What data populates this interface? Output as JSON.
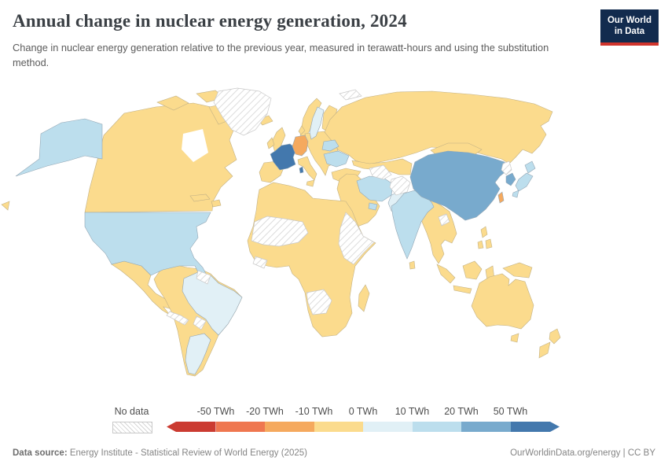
{
  "header": {
    "title": "Annual change in nuclear energy generation, 2024",
    "subtitle": "Change in nuclear energy generation relative to the previous year, measured in terawatt-hours and using the substitution method.",
    "logo": {
      "line1": "Our World",
      "line2": "in Data",
      "bg_color": "#122b4e",
      "accent_color": "#d0342c"
    }
  },
  "legend": {
    "no_data_label": "No data",
    "tick_labels": [
      "-50 TWh",
      "-20 TWh",
      "-10 TWh",
      "0 TWh",
      "10 TWh",
      "20 TWh",
      "50 TWh"
    ],
    "bins": [
      {
        "id": "lt-50",
        "label": "< -50 TWh",
        "color": "#cb3b31"
      },
      {
        "id": "-50to-20",
        "label": "-50 to -20 TWh",
        "color": "#ef7750"
      },
      {
        "id": "-20to-10",
        "label": "-20 to -10 TWh",
        "color": "#f5a95e"
      },
      {
        "id": "-10to0",
        "label": "-10 to 0 TWh",
        "color": "#fbdb8d"
      },
      {
        "id": "0to10",
        "label": "0 to 10 TWh",
        "color": "#e1f0f6"
      },
      {
        "id": "10to20",
        "label": "10 to 20 TWh",
        "color": "#bcdeed"
      },
      {
        "id": "20to50",
        "label": "20 to 50 TWh",
        "color": "#78aacd"
      },
      {
        "id": "gt50",
        "label": "> 50 TWh",
        "color": "#4378ad"
      }
    ]
  },
  "map": {
    "land_default_color": "#fbdb8d",
    "regions": {
      "alaska": 5,
      "usa": 5,
      "france": 7,
      "corsica": 7,
      "germany": 2,
      "sweden": 4,
      "ukraine": 5,
      "belarus": 5,
      "brazil": 4,
      "argentina": 4,
      "iran": 5,
      "uae": 5,
      "pakistan": 4,
      "india": 5,
      "china": 6,
      "south-korea": 6,
      "japan": 5,
      "taiwan": 2
    }
  },
  "chart_data": {
    "type": "choropleth",
    "title": "Annual change in nuclear energy generation, 2024",
    "unit": "TWh (substitution method)",
    "legend_position": "bottom",
    "bins_twh": [
      [
        null,
        -50
      ],
      [
        -50,
        -20
      ],
      [
        -20,
        -10
      ],
      [
        -10,
        0
      ],
      [
        0,
        10
      ],
      [
        10,
        20
      ],
      [
        20,
        50
      ],
      [
        50,
        null
      ]
    ],
    "highlighted_regions": [
      {
        "name": "France",
        "bin": "> 50 TWh"
      },
      {
        "name": "China",
        "bin": "20 to 50 TWh"
      },
      {
        "name": "South Korea",
        "bin": "20 to 50 TWh"
      },
      {
        "name": "United States",
        "bin": "10 to 20 TWh"
      },
      {
        "name": "India",
        "bin": "10 to 20 TWh"
      },
      {
        "name": "Japan",
        "bin": "10 to 20 TWh"
      },
      {
        "name": "Ukraine",
        "bin": "10 to 20 TWh"
      },
      {
        "name": "Belarus",
        "bin": "10 to 20 TWh"
      },
      {
        "name": "Iran",
        "bin": "10 to 20 TWh"
      },
      {
        "name": "United Arab Emirates",
        "bin": "10 to 20 TWh"
      },
      {
        "name": "Sweden",
        "bin": "0 to 10 TWh"
      },
      {
        "name": "Brazil",
        "bin": "0 to 10 TWh"
      },
      {
        "name": "Argentina",
        "bin": "0 to 10 TWh"
      },
      {
        "name": "Pakistan",
        "bin": "0 to 10 TWh"
      },
      {
        "name": "Germany",
        "bin": "-20 to -10 TWh"
      },
      {
        "name": "Taiwan",
        "bin": "-20 to -10 TWh"
      }
    ],
    "default_bin": "-10 to 0 TWh (most countries, change near zero)",
    "no_data_regions": [
      "Greenland",
      "Svalbard",
      "Honduras/Nicaragua",
      "Guyana",
      "Suriname",
      "Paraguay",
      "Mauritania/Mali/Niger",
      "Liberia/Côte d'Ivoire",
      "Ethiopia",
      "Somalia",
      "Kenya",
      "South Sudan",
      "Namibia",
      "Botswana",
      "Turkmenistan",
      "Afghanistan",
      "North Korea",
      "Laos"
    ]
  },
  "footer": {
    "source_label": "Data source:",
    "source_text": " Energy Institute - Statistical Review of World Energy (2025)",
    "right_text": "OurWorldinData.org/energy | CC BY"
  }
}
